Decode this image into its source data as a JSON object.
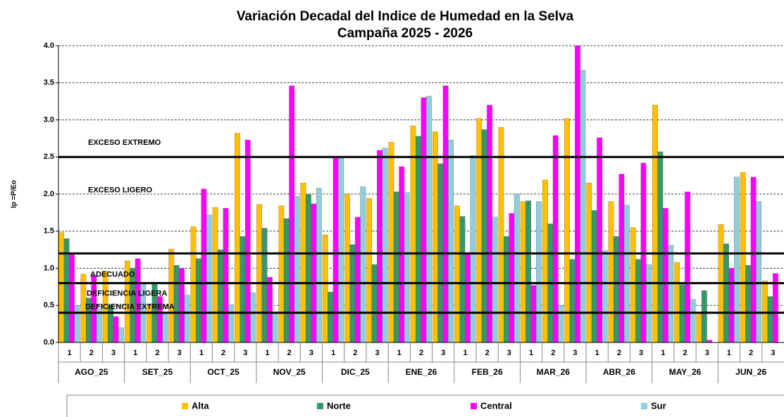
{
  "chart_data": {
    "type": "bar",
    "title": "Variación Decadal del Indice de Humedad en la Selva",
    "subtitle": "Campaña 2025 - 2026",
    "y_label": "Ip =P/Eo",
    "categories": [
      "1",
      "2",
      "3",
      "1",
      "2",
      "3",
      "1",
      "2",
      "3",
      "1",
      "2",
      "3",
      "1",
      "2",
      "3",
      "1",
      "2",
      "3",
      "1",
      "2",
      "3",
      "1",
      "2",
      "3",
      "1",
      "2",
      "3",
      "1",
      "2",
      "3",
      "1",
      "2",
      "3"
    ],
    "groups": [
      "AGO_25",
      "SET_25",
      "OCT_25",
      "NOV_25",
      "DIC_25",
      "ENE_26",
      "FEB_26",
      "MAR_26",
      "ABR_26",
      "MAY_26",
      "JUN_26"
    ],
    "series": [
      {
        "name": "Alta",
        "color": "#ffc000",
        "values": [
          1.48,
          0.92,
          0.96,
          1.1,
          0.5,
          1.26,
          1.56,
          1.82,
          2.82,
          1.86,
          1.84,
          2.15,
          1.45,
          2.0,
          1.94,
          2.7,
          2.92,
          2.84,
          1.84,
          3.02,
          2.9,
          1.9,
          2.19,
          3.02,
          2.15,
          1.9,
          1.55,
          3.2,
          1.08,
          0.4,
          1.59,
          2.29,
          0.83
        ]
      },
      {
        "name": "Norte",
        "color": "#339966",
        "values": [
          1.4,
          0.6,
          0.5,
          1.0,
          0.81,
          1.04,
          1.13,
          1.25,
          1.43,
          1.54,
          1.67,
          2.0,
          0.68,
          1.32,
          1.05,
          2.03,
          2.78,
          2.41,
          1.7,
          2.87,
          1.43,
          1.91,
          1.6,
          1.12,
          1.78,
          1.43,
          1.12,
          2.57,
          0.78,
          0.7,
          1.33,
          1.04,
          0.62
        ]
      },
      {
        "name": "Central",
        "color": "#ff00ff",
        "values": [
          1.2,
          0.9,
          0.35,
          1.13,
          0.62,
          1.0,
          2.07,
          1.81,
          2.73,
          0.88,
          3.46,
          1.87,
          2.49,
          1.69,
          2.59,
          2.37,
          3.3,
          3.46,
          1.2,
          3.2,
          1.74,
          0.77,
          2.79,
          4.0,
          2.76,
          2.27,
          2.42,
          1.81,
          2.03,
          0.03,
          1.0,
          2.23,
          0.93
        ]
      },
      {
        "name": "Sur",
        "color": "#92cddc",
        "values": [
          0.5,
          0.45,
          0.2,
          0.78,
          0.4,
          0.64,
          1.72,
          0.51,
          0.67,
          0.4,
          1.97,
          2.08,
          2.49,
          2.1,
          2.62,
          2.02,
          3.32,
          2.73,
          2.52,
          1.69,
          2.0,
          1.9,
          0.5,
          3.67,
          1.24,
          1.85,
          1.05,
          1.31,
          0.58,
          0.0,
          2.23,
          1.9,
          null
        ]
      }
    ],
    "ylim": [
      0,
      4
    ],
    "yticks": [
      {
        "value": 0,
        "label": "0.0"
      },
      {
        "value": 0.5,
        "label": "0.5"
      },
      {
        "value": 1,
        "label": "1.0"
      },
      {
        "value": 1.5,
        "label": "1.5"
      },
      {
        "value": 2,
        "label": "2.0"
      },
      {
        "value": 2.5,
        "label": "2.5"
      },
      {
        "value": 3,
        "label": "3.0"
      },
      {
        "value": 3.5,
        "label": "3.5"
      },
      {
        "value": 4,
        "label": "4.0"
      }
    ],
    "grid": true,
    "thresholds": [
      2.5,
      1.2,
      0.8,
      0.4
    ],
    "zones": [
      "EXCESO EXTREMO",
      "EXCESO LIGERO",
      "ADECUADO",
      "DEFICIENCIA LIGERA",
      "DEFICIENCIA EXTREMA"
    ],
    "legend": "bottom"
  }
}
